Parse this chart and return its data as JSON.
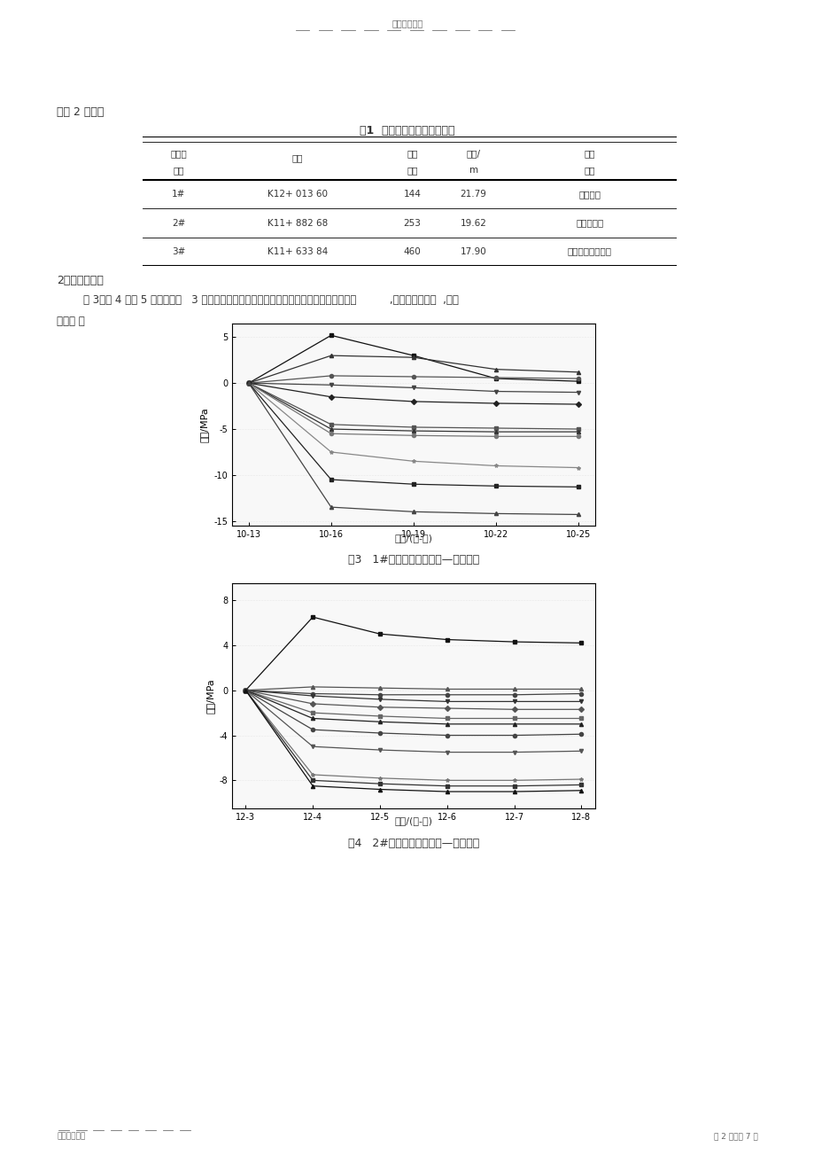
{
  "page_title": "精选学习资料",
  "page_footer_left": "名师归纳总结",
  "page_footer_right": "第 2 页，共 7 页",
  "text_line1": "如图 2 所示。",
  "table_title": "表1  被测环的里程及地理位置",
  "table_col_headers_row1": [
    "被测环",
    "里程",
    "施工",
    "埋深/",
    "所处"
  ],
  "table_col_headers_row2": [
    "编号",
    "",
    "环号",
    "m",
    "地层"
  ],
  "table_rows": [
    [
      "1#",
      "K12+ 013 60",
      "144",
      "21.79",
      "黏质粉土"
    ],
    [
      "2#",
      "K11+ 882 68",
      "253",
      "19.62",
      "砂土、卵石"
    ],
    [
      "3#",
      "K11+ 633 84",
      "460",
      "17.90",
      "黏土、砂土、卵石"
    ]
  ],
  "text_section2": "2、结果及分析",
  "text_para_line1": "        图 3、图 4 和图 5 分别给出了   3 个被测环各测点随盾构向前推进到不同位置时地测试结果          ,规定拉应力为正  ,压应",
  "text_para_line2": "力为负 。",
  "fig3_title": "图3   1#被测环钢筋计应力—时间曲线",
  "fig3_xlabel": "时间/(月-日)",
  "fig3_ylabel": "应力/MPa",
  "fig3_xticks": [
    "10-13",
    "10-16",
    "10-19",
    "10-22",
    "10-25"
  ],
  "fig3_yticks": [
    5,
    0,
    -5,
    -10,
    -15
  ],
  "fig3_ylim": [
    -15.5,
    6.5
  ],
  "fig3_series": [
    [
      0.0,
      5.2,
      3.0,
      0.5,
      0.2
    ],
    [
      0.0,
      3.0,
      2.8,
      1.5,
      1.2
    ],
    [
      0.0,
      0.8,
      0.7,
      0.6,
      0.5
    ],
    [
      0.0,
      -0.2,
      -0.5,
      -0.9,
      -1.0
    ],
    [
      0.0,
      -1.5,
      -2.0,
      -2.2,
      -2.3
    ],
    [
      0.0,
      -4.5,
      -4.8,
      -4.9,
      -5.0
    ],
    [
      0.0,
      -5.0,
      -5.2,
      -5.3,
      -5.3
    ],
    [
      0.0,
      -5.5,
      -5.7,
      -5.8,
      -5.8
    ],
    [
      0.0,
      -7.5,
      -8.5,
      -9.0,
      -9.2
    ],
    [
      0.0,
      -10.5,
      -11.0,
      -11.2,
      -11.3
    ],
    [
      0.0,
      -13.5,
      -14.0,
      -14.2,
      -14.3
    ]
  ],
  "fig3_markers": [
    "s",
    "^",
    "o",
    "v",
    "D",
    "s",
    "^",
    "o",
    "*",
    "s",
    "^"
  ],
  "fig3_colors": [
    "#111111",
    "#333333",
    "#555555",
    "#444444",
    "#222222",
    "#555555",
    "#333333",
    "#777777",
    "#888888",
    "#222222",
    "#444444"
  ],
  "fig4_title": "图4   2#被测环钢筋计应力—时间曲线",
  "fig4_xlabel": "时间/(月-日)",
  "fig4_ylabel": "应力/MPa",
  "fig4_xticks": [
    "12-3",
    "12-4",
    "12-5",
    "12-6",
    "12-7",
    "12-8"
  ],
  "fig4_yticks": [
    8,
    4,
    0,
    -4,
    -8
  ],
  "fig4_ylim": [
    -10.5,
    9.5
  ],
  "fig4_series": [
    [
      0.0,
      6.5,
      5.0,
      4.5,
      4.3,
      4.2
    ],
    [
      0.0,
      0.3,
      0.2,
      0.1,
      0.1,
      0.1
    ],
    [
      0.0,
      -0.3,
      -0.4,
      -0.4,
      -0.4,
      -0.3
    ],
    [
      0.0,
      -0.5,
      -0.8,
      -1.0,
      -1.0,
      -1.0
    ],
    [
      0.0,
      -1.2,
      -1.5,
      -1.6,
      -1.7,
      -1.7
    ],
    [
      0.0,
      -2.0,
      -2.3,
      -2.5,
      -2.5,
      -2.5
    ],
    [
      0.0,
      -2.5,
      -2.8,
      -3.0,
      -3.0,
      -3.0
    ],
    [
      0.0,
      -3.5,
      -3.8,
      -4.0,
      -4.0,
      -3.9
    ],
    [
      0.0,
      -5.0,
      -5.3,
      -5.5,
      -5.5,
      -5.4
    ],
    [
      0.0,
      -7.5,
      -7.8,
      -8.0,
      -8.0,
      -7.9
    ],
    [
      0.0,
      -8.0,
      -8.3,
      -8.5,
      -8.5,
      -8.4
    ],
    [
      0.0,
      -8.5,
      -8.8,
      -9.0,
      -9.0,
      -8.9
    ]
  ],
  "fig4_markers": [
    "s",
    "^",
    "o",
    "v",
    "D",
    "s",
    "^",
    "o",
    "v",
    "*",
    "s",
    "^"
  ],
  "fig4_colors": [
    "#111111",
    "#555555",
    "#444444",
    "#333333",
    "#555555",
    "#666666",
    "#222222",
    "#444444",
    "#555555",
    "#777777",
    "#333333",
    "#111111"
  ]
}
